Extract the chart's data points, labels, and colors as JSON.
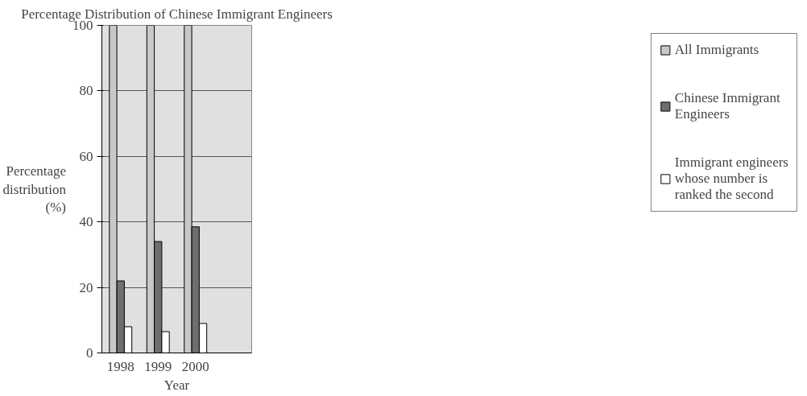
{
  "chart_data": {
    "type": "bar",
    "title": "Percentage Distribution of Chinese Immigrant Engineers",
    "xlabel": "Year",
    "ylabel": "Percentage distribution (%)",
    "categories": [
      "1998",
      "1999",
      "2000",
      null
    ],
    "series": [
      {
        "name": "All Immigrants",
        "color": "#c8c8c8",
        "values": [
          100,
          100,
          100,
          null
        ]
      },
      {
        "name": "Chinese Immigrant Engineers",
        "color": "#6e6e6e",
        "values": [
          22,
          34,
          38.5,
          null
        ]
      },
      {
        "name": "Immigrant engineers whose number is ranked the second",
        "color": "#ffffff",
        "values": [
          8,
          6.5,
          9,
          null
        ]
      }
    ],
    "ylim": [
      0,
      100
    ],
    "yticks": [
      0,
      20,
      40,
      60,
      80,
      100
    ],
    "grid": "y",
    "legend": "right"
  }
}
